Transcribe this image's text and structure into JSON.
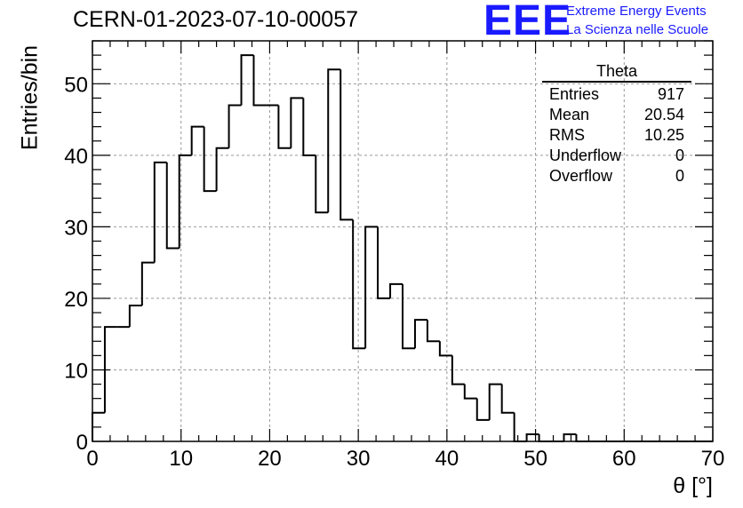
{
  "header": {
    "run_title": "CERN-01-2023-07-10-00057",
    "logo_text": "EEE",
    "logo_line1": "Extreme Energy Events",
    "logo_line2": "La Scienza nelle Scuole",
    "logo_color": "#1a1aff"
  },
  "stats": {
    "name": "Theta",
    "rows": [
      {
        "label": "Entries",
        "value": "917"
      },
      {
        "label": "Mean",
        "value": "20.54"
      },
      {
        "label": "RMS",
        "value": "10.25"
      },
      {
        "label": "Underflow",
        "value": "0"
      },
      {
        "label": "Overflow",
        "value": "0"
      }
    ]
  },
  "chart_data": {
    "type": "bar",
    "subtype": "step-histogram",
    "xlabel": "θ [°]",
    "ylabel": "Entries/bin",
    "xlim": [
      0,
      70
    ],
    "ylim": [
      0,
      56
    ],
    "xticks": [
      0,
      10,
      20,
      30,
      40,
      50,
      60,
      70
    ],
    "yticks": [
      0,
      10,
      20,
      30,
      40,
      50
    ],
    "grid": true,
    "bin_width": 1.4,
    "values": [
      4,
      16,
      16,
      19,
      25,
      39,
      27,
      40,
      44,
      35,
      41,
      47,
      54,
      47,
      47,
      41,
      48,
      40,
      32,
      52,
      31,
      13,
      30,
      20,
      22,
      13,
      17,
      14,
      12,
      8,
      6,
      3,
      8,
      4,
      0,
      1,
      0,
      0,
      1,
      0,
      0,
      0,
      0,
      0,
      0,
      0,
      0,
      0,
      0,
      0
    ],
    "line_color": "#000000",
    "grid_color": "#999999"
  }
}
